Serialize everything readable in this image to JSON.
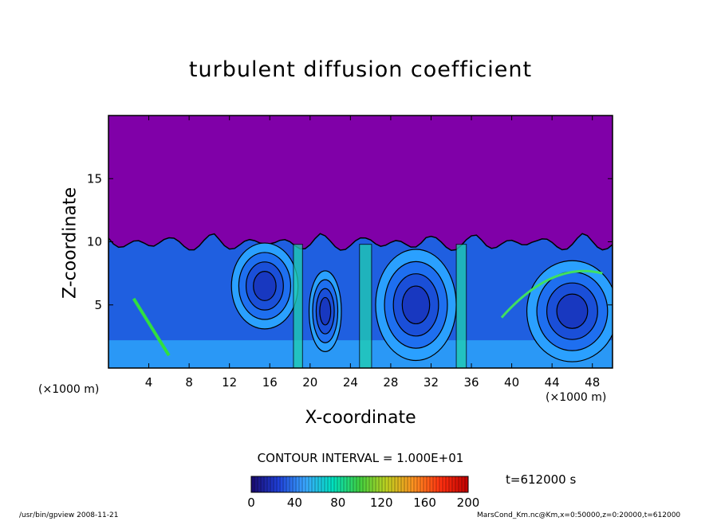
{
  "chart_data": {
    "type": "heatmap",
    "title": "turbulent diffusion coefficient",
    "xlabel": "X-coordinate",
    "ylabel": "Z-coordinate",
    "x_unit": "(×1000 m)",
    "y_unit": "(×1000 m)",
    "xlim": [
      0,
      50
    ],
    "ylim": [
      0,
      20
    ],
    "x_ticks": [
      4,
      8,
      12,
      16,
      20,
      24,
      28,
      32,
      36,
      40,
      44,
      48
    ],
    "y_ticks": [
      5,
      10,
      15
    ],
    "colorbar": {
      "range": [
        0,
        200
      ],
      "ticks": [
        0,
        40,
        80,
        120,
        160,
        200
      ],
      "colors": [
        "#1a0a6e",
        "#1f3fd8",
        "#3aa8ff",
        "#00e0c0",
        "#40d040",
        "#c0d020",
        "#ff9020",
        "#ff3010",
        "#c00000"
      ]
    },
    "background_color": "#8000a8",
    "contour_interval": "CONTOUR INTERVAL = 1.000E+01",
    "time": "t=612000 s",
    "footer_left": "/usr/bin/gpview   2008-11-21",
    "footer_right": "MarsCond_Km.nc@Km,x=0:50000,z=0:20000,t=612000",
    "features": {
      "turbulent_layer_top_km": 10.3,
      "eddies": [
        {
          "x": 15.5,
          "z": 6.5,
          "rx": 3.3,
          "rz": 3.4
        },
        {
          "x": 21.5,
          "z": 4.5,
          "rx": 1.6,
          "rz": 3.2
        },
        {
          "x": 30.5,
          "z": 5.0,
          "rx": 4.0,
          "rz": 4.4
        },
        {
          "x": 46.0,
          "z": 4.5,
          "rx": 4.5,
          "rz": 4.0
        }
      ]
    }
  }
}
